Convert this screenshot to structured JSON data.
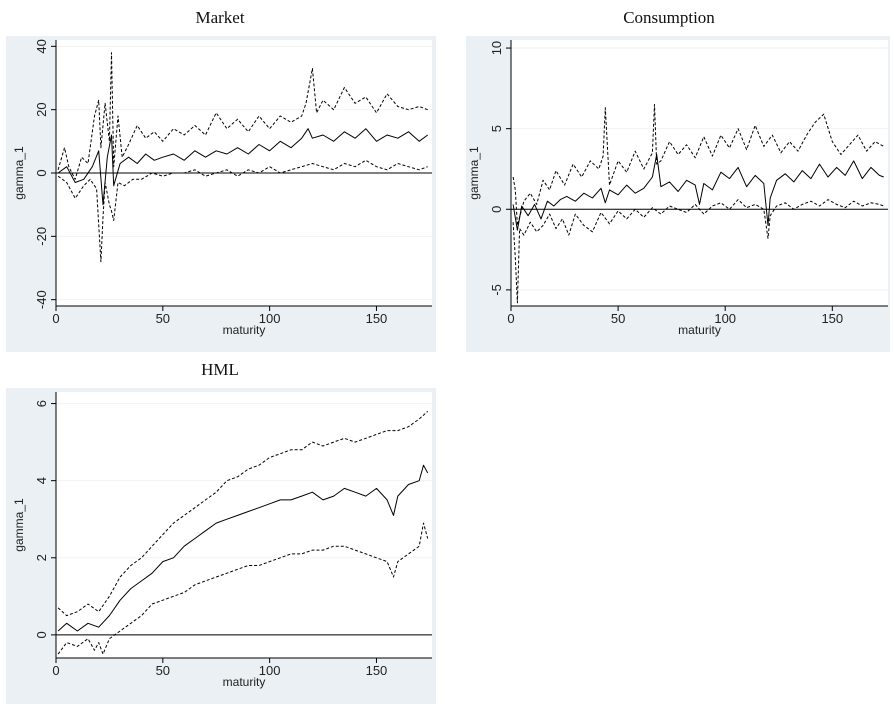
{
  "chart_data": [
    {
      "type": "line",
      "title": "Market",
      "xlabel": "maturity",
      "ylabel": "gamma_1",
      "xlim": [
        0,
        176
      ],
      "ylim": [
        -42,
        42
      ],
      "xticks": [
        0,
        50,
        100,
        150
      ],
      "yticks": [
        -40,
        -20,
        0,
        20,
        40
      ],
      "zero_line": true,
      "series": [
        {
          "style": "solid",
          "x": [
            1,
            5,
            9,
            13,
            17,
            20,
            22,
            24,
            26,
            27,
            30,
            34,
            38,
            42,
            46,
            50,
            55,
            60,
            65,
            70,
            75,
            80,
            85,
            90,
            95,
            100,
            105,
            110,
            115,
            118,
            120,
            125,
            130,
            135,
            140,
            145,
            150,
            155,
            160,
            165,
            170,
            174
          ],
          "values": [
            0,
            2,
            -3,
            -2,
            2,
            7,
            -10,
            5,
            12,
            -4,
            3,
            5,
            3,
            6,
            4,
            5,
            6,
            4,
            7,
            5,
            7,
            6,
            8,
            6,
            9,
            7,
            10,
            8,
            11,
            14,
            11,
            12,
            10,
            13,
            11,
            14,
            10,
            12,
            11,
            13,
            10,
            12
          ]
        },
        {
          "style": "dashed",
          "x": [
            1,
            4,
            6,
            9,
            12,
            15,
            18,
            20,
            21,
            23,
            25,
            26,
            27,
            29,
            31,
            34,
            38,
            42,
            46,
            50,
            55,
            60,
            65,
            70,
            75,
            80,
            85,
            90,
            95,
            100,
            105,
            110,
            115,
            117,
            120,
            122,
            125,
            130,
            135,
            140,
            145,
            150,
            155,
            160,
            165,
            170,
            174
          ],
          "values": [
            1,
            8,
            2,
            -2,
            5,
            3,
            18,
            23,
            8,
            22,
            10,
            38,
            2,
            18,
            5,
            9,
            15,
            11,
            13,
            10,
            14,
            12,
            15,
            12,
            19,
            14,
            17,
            13,
            18,
            14,
            18,
            16,
            18,
            22,
            33,
            19,
            23,
            20,
            27,
            22,
            24,
            19,
            25,
            21,
            20,
            21,
            20
          ]
        },
        {
          "style": "dashed",
          "x": [
            1,
            5,
            9,
            13,
            16,
            19,
            21,
            22,
            23,
            25,
            26,
            27,
            29,
            32,
            36,
            40,
            45,
            50,
            55,
            60,
            65,
            70,
            75,
            80,
            85,
            90,
            95,
            100,
            105,
            110,
            115,
            120,
            125,
            130,
            135,
            140,
            145,
            150,
            155,
            160,
            165,
            170,
            174
          ],
          "values": [
            -1,
            -3,
            -8,
            -4,
            -2,
            -5,
            -28,
            -14,
            -3,
            -10,
            -12,
            -15,
            -3,
            -4,
            -2,
            -2,
            0,
            -1,
            0,
            0,
            1,
            -1,
            0,
            1,
            -1,
            1,
            0,
            2,
            0,
            1,
            2,
            3,
            2,
            1,
            3,
            2,
            4,
            2,
            1,
            3,
            2,
            1,
            2
          ]
        }
      ]
    },
    {
      "type": "line",
      "title": "Consumption",
      "xlabel": "maturity",
      "ylabel": "gamma_1",
      "xlim": [
        0,
        176
      ],
      "ylim": [
        -6,
        10.5
      ],
      "xticks": [
        0,
        50,
        100,
        150
      ],
      "yticks": [
        -5,
        0,
        5,
        10
      ],
      "zero_line": true,
      "series": [
        {
          "style": "solid",
          "x": [
            1,
            3,
            5,
            8,
            11,
            14,
            17,
            20,
            23,
            26,
            30,
            34,
            38,
            42,
            44,
            46,
            50,
            54,
            58,
            62,
            66,
            68,
            70,
            74,
            78,
            82,
            86,
            88,
            90,
            94,
            98,
            102,
            106,
            110,
            114,
            118,
            120,
            121,
            124,
            128,
            132,
            136,
            140,
            144,
            148,
            152,
            156,
            160,
            164,
            168,
            172,
            174
          ],
          "values": [
            0.3,
            -1.3,
            0.2,
            -0.4,
            0.3,
            -0.6,
            0.5,
            0.2,
            0.6,
            0.8,
            0.5,
            1.0,
            0.7,
            1.3,
            0.4,
            1.2,
            0.9,
            1.5,
            1.0,
            1.3,
            2.0,
            3.4,
            1.4,
            1.7,
            1.1,
            1.8,
            1.5,
            0.3,
            1.6,
            1.2,
            2.3,
            1.9,
            2.6,
            1.4,
            2.1,
            1.6,
            -1.0,
            0.7,
            1.8,
            2.2,
            1.7,
            2.4,
            1.9,
            2.8,
            2.0,
            2.6,
            2.1,
            3.0,
            1.9,
            2.6,
            2.1,
            2.0
          ]
        },
        {
          "style": "dashed",
          "x": [
            1,
            2,
            3,
            6,
            9,
            12,
            15,
            18,
            21,
            25,
            29,
            33,
            37,
            41,
            43,
            44,
            46,
            50,
            54,
            58,
            62,
            66,
            67,
            68,
            70,
            74,
            78,
            82,
            86,
            90,
            94,
            98,
            102,
            106,
            110,
            114,
            118,
            122,
            126,
            130,
            134,
            138,
            142,
            146,
            150,
            154,
            158,
            162,
            166,
            170,
            174
          ],
          "values": [
            2.0,
            1.2,
            -1.0,
            0.5,
            1.0,
            0.3,
            1.8,
            1.2,
            2.4,
            1.5,
            2.8,
            2.0,
            3.0,
            2.5,
            3.3,
            6.3,
            1.5,
            3.0,
            2.3,
            3.6,
            2.5,
            3.5,
            6.5,
            2.8,
            3.0,
            4.2,
            3.4,
            4.0,
            3.2,
            4.5,
            3.3,
            4.6,
            3.8,
            5.0,
            3.7,
            5.2,
            3.9,
            4.6,
            3.5,
            4.2,
            3.6,
            4.6,
            5.4,
            5.9,
            4.2,
            3.4,
            4.0,
            4.6,
            3.6,
            4.2,
            3.9
          ]
        },
        {
          "style": "dashed",
          "x": [
            1,
            2,
            3,
            4,
            6,
            9,
            12,
            15,
            18,
            21,
            24,
            27,
            30,
            34,
            38,
            42,
            46,
            50,
            54,
            58,
            62,
            66,
            70,
            74,
            78,
            82,
            86,
            90,
            94,
            98,
            102,
            106,
            110,
            114,
            118,
            120,
            121,
            124,
            128,
            132,
            136,
            140,
            144,
            148,
            152,
            156,
            160,
            164,
            168,
            172,
            174
          ],
          "values": [
            -0.8,
            -3.0,
            -5.8,
            -1.2,
            -1.6,
            -0.8,
            -1.4,
            -1.0,
            -0.3,
            -1.2,
            -0.6,
            -1.6,
            -0.3,
            -1.0,
            -1.4,
            -0.2,
            -0.9,
            -0.1,
            -0.6,
            0.0,
            -0.5,
            0.1,
            -0.3,
            0.2,
            0.0,
            -0.2,
            0.3,
            -0.3,
            0.2,
            0.4,
            0.0,
            0.6,
            0.1,
            0.3,
            0.0,
            -1.8,
            -0.4,
            0.2,
            0.4,
            0.0,
            0.3,
            0.5,
            0.2,
            0.6,
            0.3,
            0.1,
            0.5,
            0.2,
            0.4,
            0.3,
            0.2
          ]
        }
      ]
    },
    {
      "type": "line",
      "title": "HML",
      "xlabel": "maturity",
      "ylabel": "gamma_1",
      "xlim": [
        0,
        176
      ],
      "ylim": [
        -0.6,
        6.3
      ],
      "xticks": [
        0,
        50,
        100,
        150
      ],
      "yticks": [
        0,
        2,
        4,
        6
      ],
      "zero_line": true,
      "series": [
        {
          "style": "solid",
          "x": [
            1,
            5,
            10,
            15,
            20,
            25,
            30,
            35,
            40,
            45,
            50,
            55,
            60,
            65,
            70,
            75,
            80,
            85,
            90,
            95,
            100,
            105,
            110,
            115,
            120,
            125,
            130,
            135,
            140,
            145,
            150,
            155,
            158,
            160,
            165,
            170,
            172,
            174
          ],
          "values": [
            0.1,
            0.3,
            0.1,
            0.3,
            0.2,
            0.5,
            0.9,
            1.2,
            1.4,
            1.6,
            1.9,
            2.0,
            2.3,
            2.5,
            2.7,
            2.9,
            3.0,
            3.1,
            3.2,
            3.3,
            3.4,
            3.5,
            3.5,
            3.6,
            3.7,
            3.5,
            3.6,
            3.8,
            3.7,
            3.6,
            3.8,
            3.5,
            3.1,
            3.6,
            3.9,
            4.0,
            4.4,
            4.2
          ]
        },
        {
          "style": "dashed",
          "x": [
            1,
            5,
            10,
            15,
            20,
            25,
            30,
            35,
            40,
            45,
            50,
            55,
            60,
            65,
            70,
            75,
            80,
            85,
            90,
            95,
            100,
            105,
            110,
            115,
            120,
            125,
            130,
            135,
            140,
            145,
            150,
            155,
            160,
            165,
            170,
            174
          ],
          "values": [
            0.7,
            0.5,
            0.6,
            0.8,
            0.6,
            1.0,
            1.5,
            1.8,
            2.0,
            2.3,
            2.6,
            2.9,
            3.1,
            3.3,
            3.5,
            3.7,
            4.0,
            4.1,
            4.3,
            4.4,
            4.6,
            4.7,
            4.8,
            4.8,
            5.0,
            4.9,
            5.0,
            5.1,
            5.0,
            5.1,
            5.2,
            5.3,
            5.3,
            5.4,
            5.6,
            5.8
          ]
        },
        {
          "style": "dashed",
          "x": [
            1,
            5,
            10,
            15,
            18,
            20,
            22,
            25,
            30,
            35,
            40,
            45,
            50,
            55,
            60,
            65,
            70,
            75,
            80,
            85,
            90,
            95,
            100,
            105,
            110,
            115,
            120,
            125,
            130,
            135,
            140,
            145,
            150,
            155,
            158,
            160,
            165,
            170,
            172,
            174
          ],
          "values": [
            -0.5,
            -0.2,
            -0.3,
            -0.1,
            -0.4,
            -0.2,
            -0.5,
            -0.1,
            0.1,
            0.3,
            0.5,
            0.8,
            0.9,
            1.0,
            1.1,
            1.3,
            1.4,
            1.5,
            1.6,
            1.7,
            1.8,
            1.8,
            1.9,
            2.0,
            2.1,
            2.1,
            2.2,
            2.2,
            2.3,
            2.3,
            2.2,
            2.1,
            2.0,
            1.9,
            1.5,
            1.9,
            2.1,
            2.3,
            2.9,
            2.5
          ]
        }
      ]
    }
  ]
}
